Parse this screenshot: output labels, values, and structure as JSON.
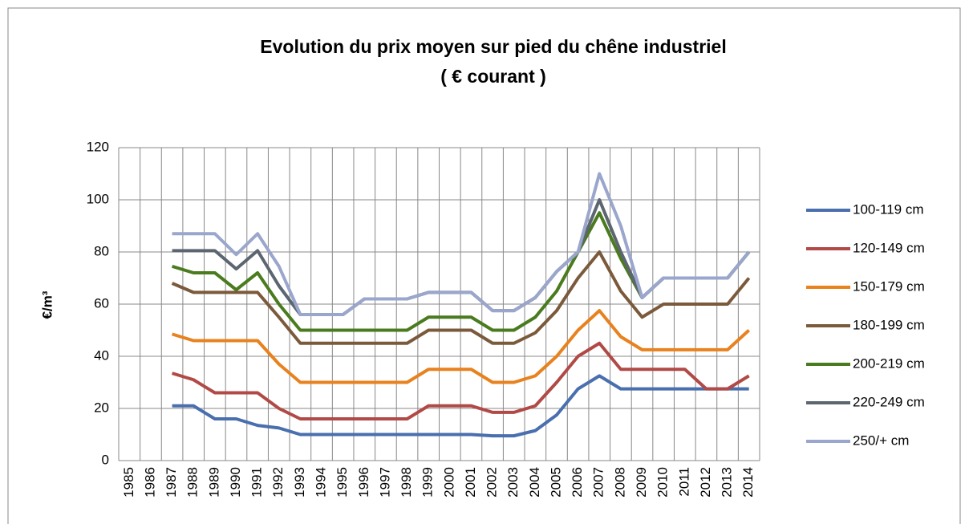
{
  "chart_data": {
    "type": "line",
    "title": "Evolution du prix moyen sur pied du chêne industriel",
    "subtitle": "( € courant )",
    "y_label": "€/m³",
    "categories": [
      "1985",
      "1986",
      "1987",
      "1988",
      "1989",
      "1990",
      "1991",
      "1992",
      "1993",
      "1994",
      "1995",
      "1996",
      "1997",
      "1998",
      "1999",
      "2000",
      "2001",
      "2002",
      "2003",
      "2004",
      "2005",
      "2006",
      "2007",
      "2008",
      "2009",
      "2010",
      "2011",
      "2012",
      "2013",
      "2014"
    ],
    "series": [
      {
        "name": "100-119 cm",
        "color": "#4a6fae",
        "values": [
          null,
          null,
          21,
          21,
          16,
          16,
          13.5,
          12.5,
          10,
          10,
          10,
          10,
          10,
          10,
          10,
          10,
          10,
          9.5,
          9.5,
          11.5,
          17.5,
          27.5,
          32.5,
          27.5,
          27.5,
          27.5,
          27.5,
          27.5,
          27.5,
          27.5
        ]
      },
      {
        "name": "120-149 cm",
        "color": "#b14a46",
        "values": [
          null,
          null,
          33.5,
          31,
          26,
          26,
          26,
          20,
          16,
          16,
          16,
          16,
          16,
          16,
          21,
          21,
          21,
          18.5,
          18.5,
          21,
          30,
          40,
          45,
          35,
          35,
          35,
          35,
          27.5,
          27.5,
          32.5
        ]
      },
      {
        "name": "150-179 cm",
        "color": "#e8821e",
        "values": [
          null,
          null,
          48.5,
          46,
          46,
          46,
          46,
          37,
          30,
          30,
          30,
          30,
          30,
          30,
          35,
          35,
          35,
          30,
          30,
          32.5,
          40,
          50,
          57.5,
          47.5,
          42.5,
          42.5,
          42.5,
          42.5,
          42.5,
          50
        ]
      },
      {
        "name": "180-199 cm",
        "color": "#7b5a3c",
        "values": [
          null,
          null,
          68,
          64.5,
          64.5,
          64.5,
          64.5,
          55,
          45,
          45,
          45,
          45,
          45,
          45,
          50,
          50,
          50,
          45,
          45,
          49,
          57.5,
          70,
          80,
          65,
          55,
          60,
          60,
          60,
          60,
          70
        ]
      },
      {
        "name": "200-219 cm",
        "color": "#4a7b1e",
        "values": [
          null,
          null,
          74.5,
          72,
          72,
          65.5,
          72,
          60,
          50,
          50,
          50,
          50,
          50,
          50,
          55,
          55,
          55,
          50,
          50,
          55,
          65,
          80,
          95,
          77.5,
          62.5,
          70,
          70,
          70,
          70,
          80
        ]
      },
      {
        "name": "220-249 cm",
        "color": "#5c6670",
        "values": [
          null,
          null,
          80.5,
          80.5,
          80.5,
          73.5,
          80.5,
          67,
          56,
          56,
          56,
          62,
          62,
          62,
          64.5,
          64.5,
          64.5,
          57.5,
          57.5,
          62.5,
          72.5,
          80,
          100,
          80,
          62.5,
          70,
          70,
          70,
          70,
          80
        ]
      },
      {
        "name": "250/+ cm",
        "color": "#9aa6cc",
        "values": [
          null,
          null,
          87,
          87,
          87,
          79,
          87,
          74.5,
          56,
          56,
          56,
          62,
          62,
          62,
          64.5,
          64.5,
          64.5,
          57.5,
          57.5,
          62.5,
          72.5,
          80,
          110,
          90,
          62.5,
          70,
          70,
          70,
          70,
          80
        ]
      }
    ],
    "ylim": [
      0,
      120
    ],
    "yticks": [
      0,
      20,
      40,
      60,
      80,
      100,
      120
    ],
    "grid": true,
    "legend": "right"
  }
}
